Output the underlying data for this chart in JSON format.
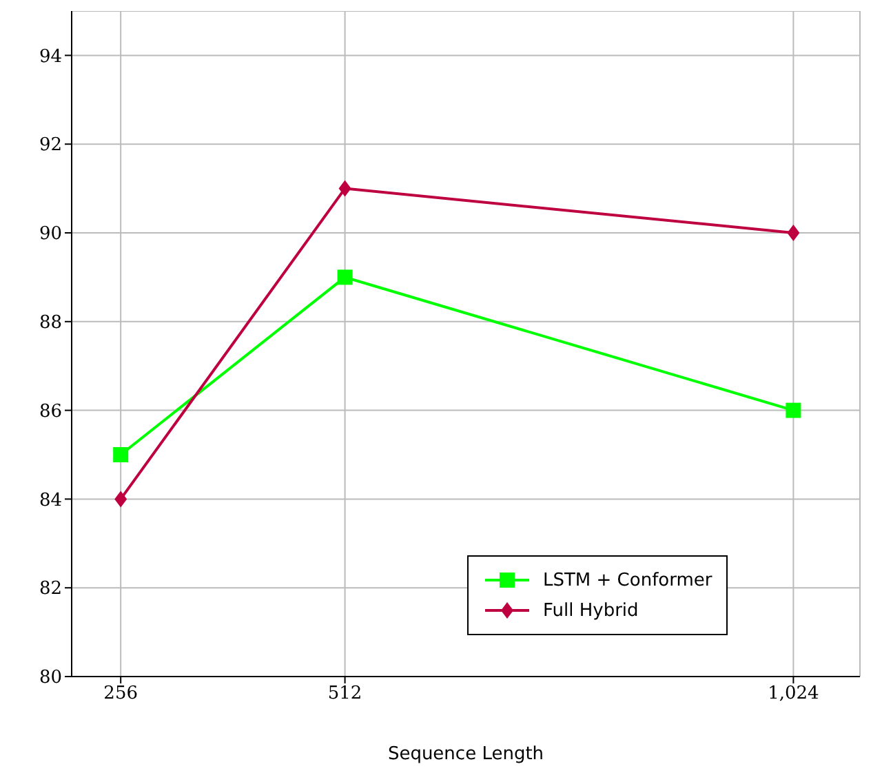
{
  "chart_data": {
    "type": "line",
    "xlabel": "Sequence Length",
    "x": [
      256,
      512,
      1024
    ],
    "series": [
      {
        "name": "LSTM + Conformer",
        "color": "#00ff00",
        "values": [
          85,
          89,
          86
        ],
        "marker": "square"
      },
      {
        "name": "Full Hybrid",
        "color": "#bf0040",
        "values": [
          84,
          91,
          90
        ],
        "marker": "diamond"
      }
    ],
    "xlim": [
      200,
      1100
    ],
    "xticks": [
      256,
      512,
      {
        "value": 1024,
        "label": "1,024"
      }
    ],
    "ylim": [
      80,
      95
    ],
    "yticks": [
      80,
      82,
      84,
      86,
      88,
      90,
      92,
      94
    ],
    "grid": true,
    "legend": "bottom right",
    "line_style": "solid"
  }
}
